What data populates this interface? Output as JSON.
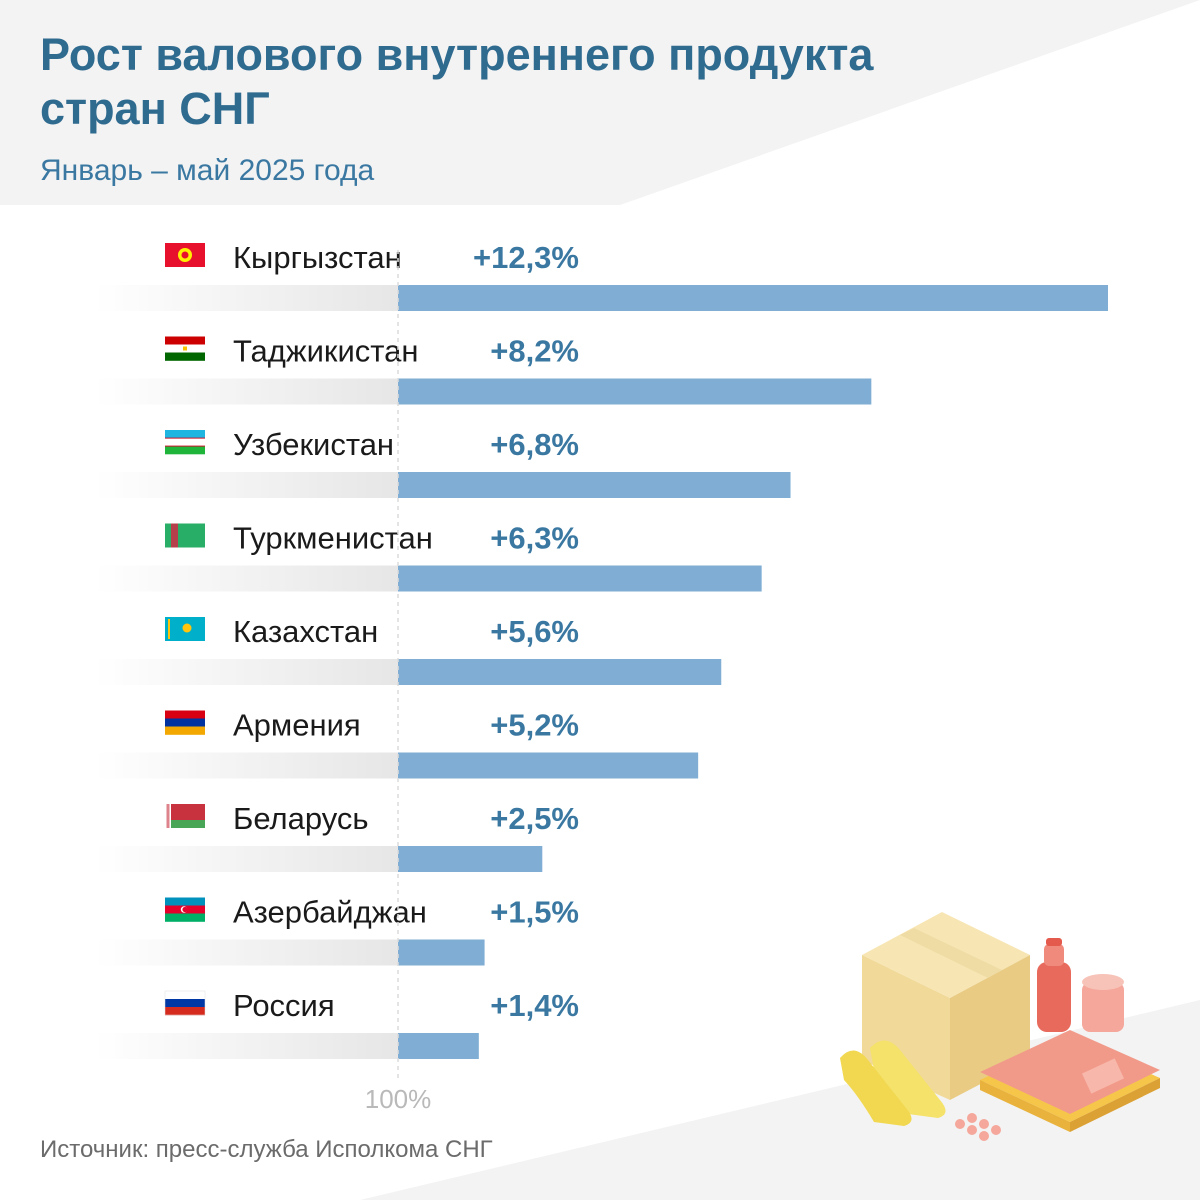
{
  "header": {
    "title": "Рост валового внутреннего продукта стран СНГ",
    "subtitle": "Январь – май 2025 года"
  },
  "footer": {
    "source": "Источник: пресс-служба Исполкома СНГ"
  },
  "chart_data": {
    "type": "bar",
    "orientation": "horizontal",
    "baseline_label": "100%",
    "baseline_value": 100,
    "categories": [
      "Кыргызстан",
      "Таджикистан",
      "Узбекистан",
      "Туркменистан",
      "Казахстан",
      "Армения",
      "Беларусь",
      "Азербайджан",
      "Россия"
    ],
    "values": [
      12.3,
      8.2,
      6.8,
      6.3,
      5.6,
      5.2,
      2.5,
      1.5,
      1.4
    ],
    "value_labels": [
      "+12,3%",
      "+8,2%",
      "+6,8%",
      "+6,3%",
      "+5,6%",
      "+5,2%",
      "+2,5%",
      "+1,5%",
      "+1,4%"
    ],
    "xlim": [
      0,
      12.3
    ],
    "grid": false,
    "legend": "none",
    "flags": [
      "kyrgyzstan-flag-icon",
      "tajikistan-flag-icon",
      "uzbekistan-flag-icon",
      "turkmenistan-flag-icon",
      "kazakhstan-flag-icon",
      "armenia-flag-icon",
      "belarus-flag-icon",
      "azerbaijan-flag-icon",
      "russia-flag-icon"
    ]
  },
  "colors": {
    "bar": "#7fadd3",
    "title": "#2f6a8f",
    "value_label": "#3a78a2",
    "track": "#e8e8e8"
  }
}
